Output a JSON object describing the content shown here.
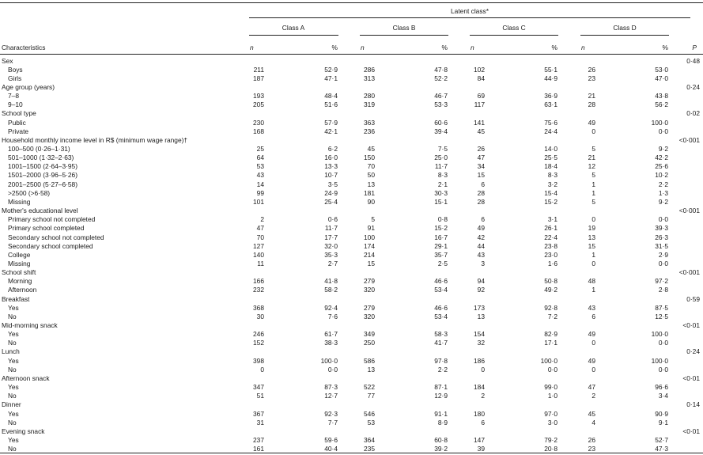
{
  "header": {
    "latent_class": "Latent class*",
    "characteristics": "Characteristics",
    "p": "P",
    "n": "n",
    "pct": "%",
    "classes": [
      "Class A",
      "Class B",
      "Class C",
      "Class D"
    ]
  },
  "rows": [
    {
      "type": "group",
      "label": "Sex",
      "p": "0·48"
    },
    {
      "type": "data",
      "label": "Boys",
      "v": [
        "211",
        "52·9",
        "286",
        "47·8",
        "102",
        "55·1",
        "26",
        "53·0"
      ]
    },
    {
      "type": "data",
      "label": "Girls",
      "v": [
        "187",
        "47·1",
        "313",
        "52·2",
        "84",
        "44·9",
        "23",
        "47·0"
      ]
    },
    {
      "type": "group",
      "label": "Age group (years)",
      "p": "0·24"
    },
    {
      "type": "data",
      "label": "7–8",
      "v": [
        "193",
        "48·4",
        "280",
        "46·7",
        "69",
        "36·9",
        "21",
        "43·8"
      ]
    },
    {
      "type": "data",
      "label": "9–10",
      "v": [
        "205",
        "51·6",
        "319",
        "53·3",
        "117",
        "63·1",
        "28",
        "56·2"
      ]
    },
    {
      "type": "group",
      "label": "School type",
      "p": "0·02"
    },
    {
      "type": "data",
      "label": "Public",
      "v": [
        "230",
        "57·9",
        "363",
        "60·6",
        "141",
        "75·6",
        "49",
        "100·0"
      ]
    },
    {
      "type": "data",
      "label": "Private",
      "v": [
        "168",
        "42·1",
        "236",
        "39·4",
        "45",
        "24·4",
        "0",
        "0·0"
      ]
    },
    {
      "type": "group",
      "label": "Household monthly income level in R$ (minimum wage range)†",
      "p": "<0·001"
    },
    {
      "type": "data",
      "label": "100–500 (0·26–1·31)",
      "v": [
        "25",
        "6·2",
        "45",
        "7·5",
        "26",
        "14·0",
        "5",
        "9·2"
      ]
    },
    {
      "type": "data",
      "label": "501–1000 (1·32–2·63)",
      "v": [
        "64",
        "16·0",
        "150",
        "25·0",
        "47",
        "25·5",
        "21",
        "42·2"
      ]
    },
    {
      "type": "data",
      "label": "1001–1500 (2·64–3·95)",
      "v": [
        "53",
        "13·3",
        "70",
        "11·7",
        "34",
        "18·4",
        "12",
        "25·6"
      ]
    },
    {
      "type": "data",
      "label": "1501–2000 (3·96–5·26)",
      "v": [
        "43",
        "10·7",
        "50",
        "8·3",
        "15",
        "8·3",
        "5",
        "10·2"
      ]
    },
    {
      "type": "data",
      "label": "2001–2500 (5·27–6·58)",
      "v": [
        "14",
        "3·5",
        "13",
        "2·1",
        "6",
        "3·2",
        "1",
        "2·2"
      ]
    },
    {
      "type": "data",
      "label": ">2500 (>6·58)",
      "v": [
        "99",
        "24·9",
        "181",
        "30·3",
        "28",
        "15·4",
        "1",
        "1·3"
      ]
    },
    {
      "type": "data",
      "label": "Missing",
      "v": [
        "101",
        "25·4",
        "90",
        "15·1",
        "28",
        "15·2",
        "5",
        "9·2"
      ]
    },
    {
      "type": "group",
      "label": "Mother's educational level",
      "p": "<0·001"
    },
    {
      "type": "data",
      "label": "Primary school not completed",
      "v": [
        "2",
        "0·6",
        "5",
        "0·8",
        "6",
        "3·1",
        "0",
        "0·0"
      ]
    },
    {
      "type": "data",
      "label": "Primary school completed",
      "v": [
        "47",
        "11·7",
        "91",
        "15·2",
        "49",
        "26·1",
        "19",
        "39·3"
      ]
    },
    {
      "type": "data",
      "label": "Secondary school not completed",
      "v": [
        "70",
        "17·7",
        "100",
        "16·7",
        "42",
        "22·4",
        "13",
        "26·3"
      ]
    },
    {
      "type": "data",
      "label": "Secondary school completed",
      "v": [
        "127",
        "32·0",
        "174",
        "29·1",
        "44",
        "23·8",
        "15",
        "31·5"
      ]
    },
    {
      "type": "data",
      "label": "College",
      "v": [
        "140",
        "35·3",
        "214",
        "35·7",
        "43",
        "23·0",
        "1",
        "2·9"
      ]
    },
    {
      "type": "data",
      "label": "Missing",
      "v": [
        "11",
        "2·7",
        "15",
        "2·5",
        "3",
        "1·6",
        "0",
        "0·0"
      ]
    },
    {
      "type": "group",
      "label": "School shift",
      "p": "<0·001"
    },
    {
      "type": "data",
      "label": "Morning",
      "v": [
        "166",
        "41·8",
        "279",
        "46·6",
        "94",
        "50·8",
        "48",
        "97·2"
      ]
    },
    {
      "type": "data",
      "label": "Afternoon",
      "v": [
        "232",
        "58·2",
        "320",
        "53·4",
        "92",
        "49·2",
        "1",
        "2·8"
      ]
    },
    {
      "type": "group",
      "label": "Breakfast",
      "p": "0·59"
    },
    {
      "type": "data",
      "label": "Yes",
      "v": [
        "368",
        "92·4",
        "279",
        "46·6",
        "173",
        "92·8",
        "43",
        "87·5"
      ]
    },
    {
      "type": "data",
      "label": "No",
      "v": [
        "30",
        "7·6",
        "320",
        "53·4",
        "13",
        "7·2",
        "6",
        "12·5"
      ]
    },
    {
      "type": "group",
      "label": "Mid-morning snack",
      "p": "<0·01"
    },
    {
      "type": "data",
      "label": "Yes",
      "v": [
        "246",
        "61·7",
        "349",
        "58·3",
        "154",
        "82·9",
        "49",
        "100·0"
      ]
    },
    {
      "type": "data",
      "label": "No",
      "v": [
        "152",
        "38·3",
        "250",
        "41·7",
        "32",
        "17·1",
        "0",
        "0·0"
      ]
    },
    {
      "type": "group",
      "label": "Lunch",
      "p": "0·24"
    },
    {
      "type": "data",
      "label": "Yes",
      "v": [
        "398",
        "100·0",
        "586",
        "97·8",
        "186",
        "100·0",
        "49",
        "100·0"
      ]
    },
    {
      "type": "data",
      "label": "No",
      "v": [
        "0",
        "0·0",
        "13",
        "2·2",
        "0",
        "0·0",
        "0",
        "0·0"
      ]
    },
    {
      "type": "group",
      "label": "Afternoon snack",
      "p": "<0·01"
    },
    {
      "type": "data",
      "label": "Yes",
      "v": [
        "347",
        "87·3",
        "522",
        "87·1",
        "184",
        "99·0",
        "47",
        "96·6"
      ]
    },
    {
      "type": "data",
      "label": "No",
      "v": [
        "51",
        "12·7",
        "77",
        "12·9",
        "2",
        "1·0",
        "2",
        "3·4"
      ]
    },
    {
      "type": "group",
      "label": "Dinner",
      "p": "0·14"
    },
    {
      "type": "data",
      "label": "Yes",
      "v": [
        "367",
        "92·3",
        "546",
        "91·1",
        "180",
        "97·0",
        "45",
        "90·9"
      ]
    },
    {
      "type": "data",
      "label": "No",
      "v": [
        "31",
        "7·7",
        "53",
        "8·9",
        "6",
        "3·0",
        "4",
        "9·1"
      ]
    },
    {
      "type": "group",
      "label": "Evening snack",
      "p": "<0·01"
    },
    {
      "type": "data",
      "label": "Yes",
      "v": [
        "237",
        "59·6",
        "364",
        "60·8",
        "147",
        "79·2",
        "26",
        "52·7"
      ]
    },
    {
      "type": "data",
      "label": "No",
      "v": [
        "161",
        "40·4",
        "235",
        "39·2",
        "39",
        "20·8",
        "23",
        "47·3"
      ]
    }
  ]
}
